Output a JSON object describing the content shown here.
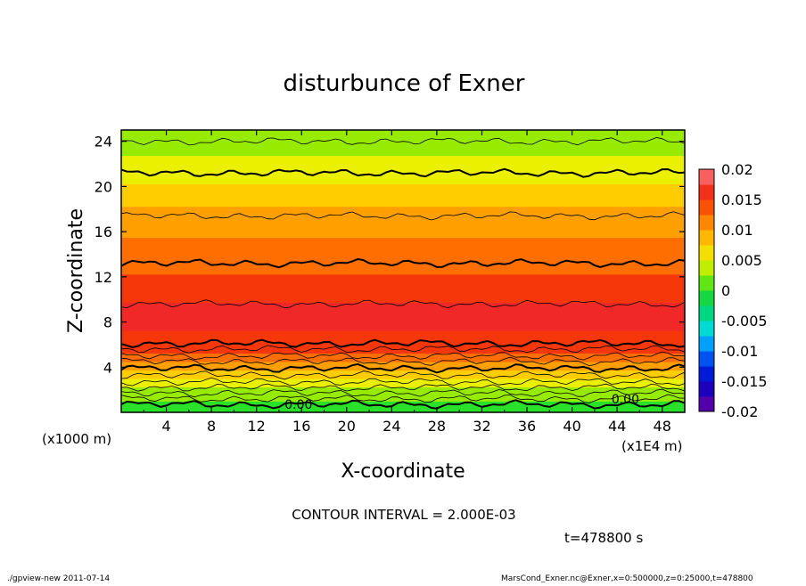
{
  "chart_data": {
    "type": "heatmap",
    "title": "disturbunce of Exner",
    "xlabel": "X-coordinate",
    "ylabel": "Z-coordinate",
    "x_unit_left": "(x1000 m)",
    "x_unit_right": "(x1E4 m)",
    "xlim": [
      0,
      50
    ],
    "ylim": [
      0,
      25
    ],
    "x_ticks": [
      4,
      8,
      12,
      16,
      20,
      24,
      28,
      32,
      36,
      40,
      44,
      48
    ],
    "y_ticks": [
      4,
      8,
      12,
      16,
      20,
      24
    ],
    "colorbar_ticks": [
      "0.02",
      "0.015",
      "0.01",
      "0.005",
      "0",
      "-0.005",
      "-0.01",
      "-0.015",
      "-0.02"
    ],
    "colorbar_range": [
      -0.02,
      0.02
    ],
    "contour_interval_text": "CONTOUR INTERVAL = 2.000E-03",
    "contour_labels": [
      "0.00",
      "0.00"
    ],
    "vertical_profile": {
      "z": [
        0,
        1,
        2,
        3,
        4,
        5,
        6,
        7,
        8,
        9,
        10,
        11,
        12,
        13,
        14,
        15,
        16,
        17,
        18,
        19,
        20,
        21,
        22,
        23,
        24,
        25
      ],
      "value": [
        -0.001,
        0.001,
        0.003,
        0.006,
        0.01,
        0.013,
        0.015,
        0.016,
        0.017,
        0.017,
        0.016,
        0.015,
        0.014,
        0.013,
        0.012,
        0.0115,
        0.011,
        0.01,
        0.009,
        0.008,
        0.0065,
        0.0055,
        0.0045,
        0.0035,
        0.0025,
        0.0015
      ]
    }
  },
  "footer": {
    "time": "t=478800 s",
    "left_info": "./gpview-new   2011-07-14",
    "right_info": "MarsCond_Exner.nc@Exner,x=0:500000,z=0:25000,t=478800"
  }
}
